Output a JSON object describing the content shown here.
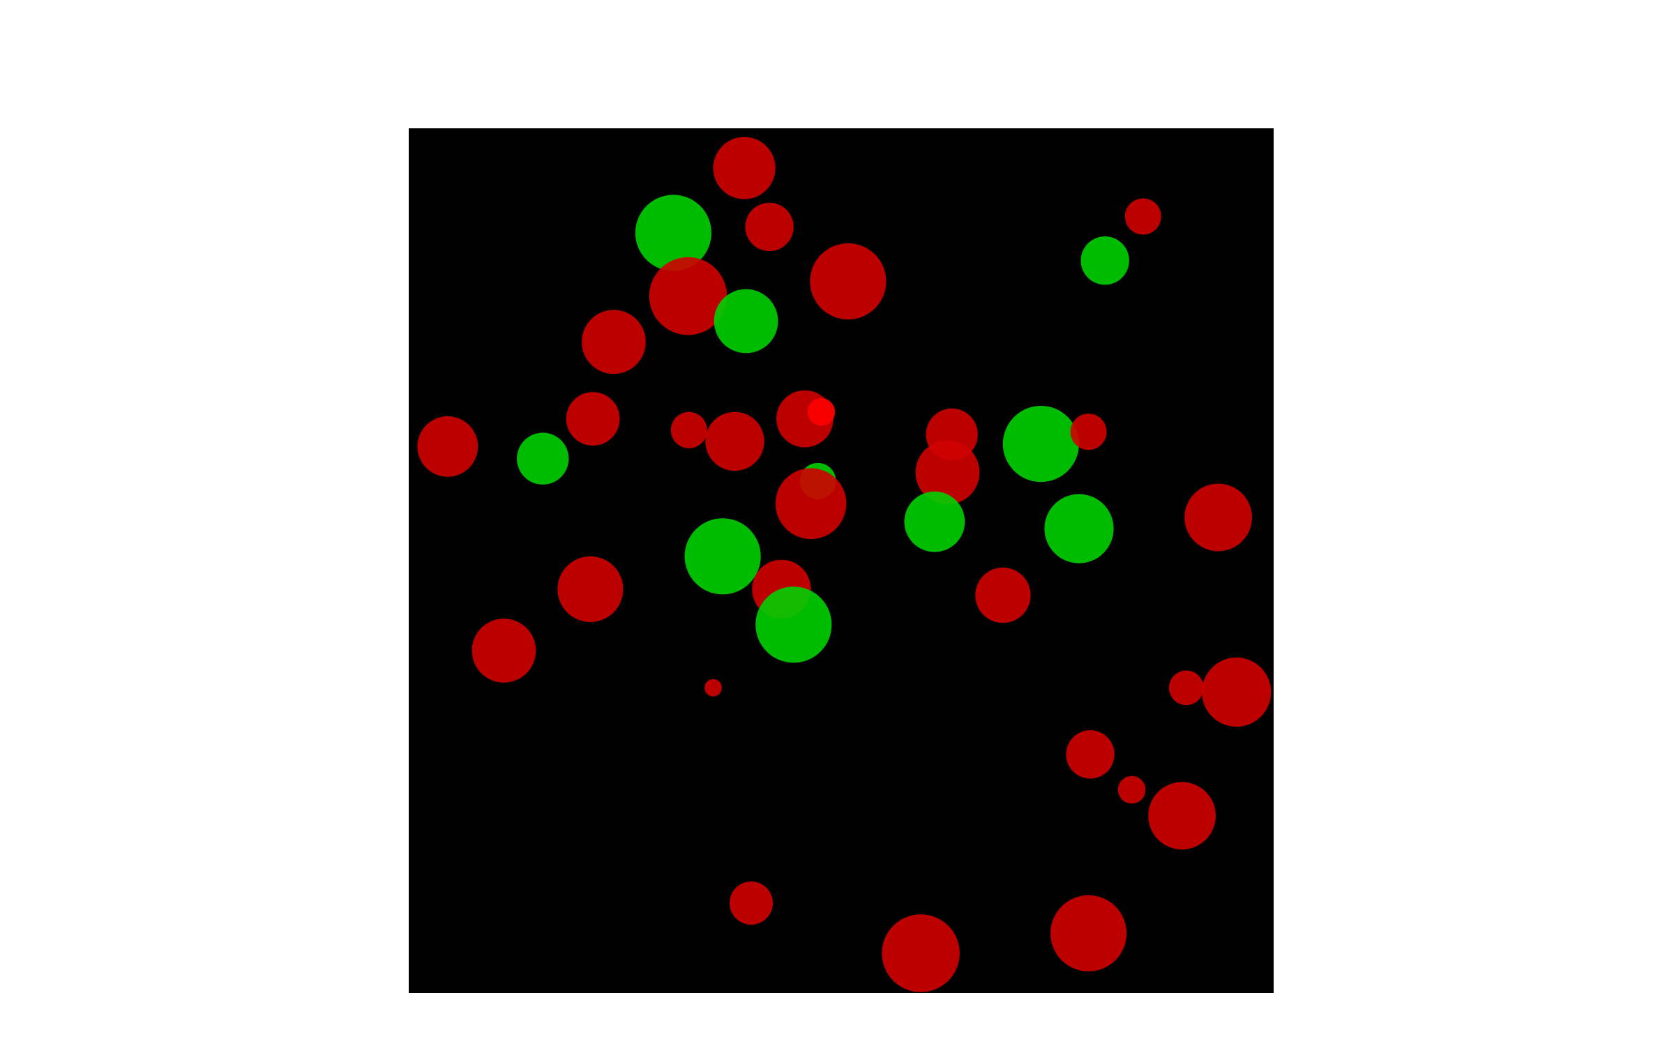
{
  "colors": {
    "page_background": "#ffffff",
    "arena_background": "#000000",
    "player": "#00d000",
    "enemy": "#d00000",
    "enemy_bright": "#ff0000"
  },
  "arena": {
    "extent": [
      0,
      100
    ],
    "background_name": "black-play-field"
  },
  "circles": [
    {
      "kind": "enemy",
      "x": 38.8,
      "y": 4.6,
      "r": 3.6
    },
    {
      "kind": "player",
      "x": 30.6,
      "y": 12.1,
      "r": 4.4
    },
    {
      "kind": "enemy",
      "x": 41.7,
      "y": 11.4,
      "r": 2.8
    },
    {
      "kind": "enemy",
      "x": 32.3,
      "y": 19.4,
      "r": 4.5
    },
    {
      "kind": "player",
      "x": 39.0,
      "y": 22.3,
      "r": 3.7
    },
    {
      "kind": "enemy",
      "x": 50.8,
      "y": 17.7,
      "r": 4.4
    },
    {
      "kind": "enemy",
      "x": 23.7,
      "y": 24.7,
      "r": 3.7
    },
    {
      "kind": "enemy",
      "x": 84.9,
      "y": 10.2,
      "r": 2.1
    },
    {
      "kind": "player",
      "x": 80.5,
      "y": 15.3,
      "r": 2.8
    },
    {
      "kind": "enemy",
      "x": 21.3,
      "y": 33.6,
      "r": 3.1
    },
    {
      "kind": "enemy",
      "x": 4.5,
      "y": 36.8,
      "r": 3.5
    },
    {
      "kind": "player",
      "x": 15.5,
      "y": 38.2,
      "r": 3.0
    },
    {
      "kind": "enemy",
      "x": 32.4,
      "y": 34.9,
      "r": 2.1
    },
    {
      "kind": "enemy",
      "x": 37.7,
      "y": 36.2,
      "r": 3.4
    },
    {
      "kind": "enemy",
      "x": 45.8,
      "y": 33.6,
      "r": 3.3
    },
    {
      "kind": "enemy_bright",
      "x": 47.7,
      "y": 32.8,
      "r": 1.6
    },
    {
      "kind": "player",
      "x": 47.3,
      "y": 40.8,
      "r": 2.1
    },
    {
      "kind": "enemy",
      "x": 46.5,
      "y": 43.4,
      "r": 4.1
    },
    {
      "kind": "enemy",
      "x": 62.8,
      "y": 35.4,
      "r": 3.0
    },
    {
      "kind": "enemy",
      "x": 62.3,
      "y": 39.8,
      "r": 3.7
    },
    {
      "kind": "player",
      "x": 73.1,
      "y": 36.5,
      "r": 4.4
    },
    {
      "kind": "enemy",
      "x": 78.6,
      "y": 35.1,
      "r": 2.1
    },
    {
      "kind": "player",
      "x": 60.8,
      "y": 45.5,
      "r": 3.5
    },
    {
      "kind": "player",
      "x": 77.5,
      "y": 46.3,
      "r": 4.0
    },
    {
      "kind": "enemy",
      "x": 93.6,
      "y": 45.0,
      "r": 3.9
    },
    {
      "kind": "player",
      "x": 36.3,
      "y": 49.5,
      "r": 4.4
    },
    {
      "kind": "enemy",
      "x": 43.1,
      "y": 53.3,
      "r": 3.4
    },
    {
      "kind": "player",
      "x": 44.5,
      "y": 57.4,
      "r": 4.4
    },
    {
      "kind": "enemy",
      "x": 21.0,
      "y": 53.3,
      "r": 3.8
    },
    {
      "kind": "enemy",
      "x": 68.7,
      "y": 54.0,
      "r": 3.2
    },
    {
      "kind": "enemy",
      "x": 11.0,
      "y": 60.4,
      "r": 3.7
    },
    {
      "kind": "enemy",
      "x": 35.2,
      "y": 64.7,
      "r": 1.0
    },
    {
      "kind": "enemy",
      "x": 89.9,
      "y": 64.7,
      "r": 2.0
    },
    {
      "kind": "enemy",
      "x": 95.7,
      "y": 65.2,
      "r": 4.0
    },
    {
      "kind": "enemy",
      "x": 78.8,
      "y": 72.4,
      "r": 2.8
    },
    {
      "kind": "enemy",
      "x": 83.6,
      "y": 76.5,
      "r": 1.6
    },
    {
      "kind": "enemy",
      "x": 89.4,
      "y": 79.5,
      "r": 3.9
    },
    {
      "kind": "enemy",
      "x": 39.6,
      "y": 89.6,
      "r": 2.5
    },
    {
      "kind": "enemy",
      "x": 59.2,
      "y": 95.4,
      "r": 4.5
    },
    {
      "kind": "enemy",
      "x": 78.6,
      "y": 93.1,
      "r": 4.4
    }
  ]
}
